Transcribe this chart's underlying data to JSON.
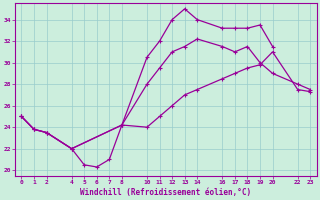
{
  "xlabel": "Windchill (Refroidissement éolien,°C)",
  "background_color": "#cceedd",
  "line_color": "#990099",
  "xlim": [
    -0.5,
    23.5
  ],
  "ylim": [
    19.5,
    35.5
  ],
  "yticks": [
    20,
    22,
    24,
    26,
    28,
    30,
    32,
    34
  ],
  "x_ticks": [
    0,
    1,
    2,
    4,
    5,
    6,
    7,
    8,
    10,
    11,
    12,
    13,
    14,
    16,
    17,
    18,
    19,
    20,
    22,
    23
  ],
  "line1_x": [
    0,
    1,
    2,
    4,
    5,
    6,
    7,
    8,
    10,
    11,
    12,
    13,
    14,
    16,
    17,
    18,
    19,
    20
  ],
  "line1_y": [
    25.0,
    23.8,
    23.5,
    22.0,
    20.5,
    20.3,
    21.0,
    24.2,
    30.5,
    32.0,
    34.0,
    35.0,
    34.0,
    33.2,
    33.2,
    33.2,
    33.5,
    31.5
  ],
  "line2_x": [
    0,
    1,
    2,
    4,
    8,
    10,
    11,
    12,
    13,
    14,
    16,
    17,
    18,
    19,
    20,
    22,
    23
  ],
  "line2_y": [
    25.0,
    23.8,
    23.5,
    22.0,
    24.2,
    28.0,
    29.5,
    31.0,
    31.5,
    32.2,
    31.5,
    31.0,
    31.5,
    30.0,
    29.0,
    28.0,
    27.5
  ],
  "line3_x": [
    0,
    1,
    2,
    4,
    8,
    10,
    11,
    12,
    13,
    14,
    16,
    17,
    18,
    19,
    20,
    22,
    23
  ],
  "line3_y": [
    25.0,
    23.8,
    23.5,
    22.0,
    24.2,
    24.0,
    25.0,
    26.0,
    27.0,
    27.5,
    28.5,
    29.0,
    29.5,
    29.8,
    31.0,
    27.5,
    27.3
  ]
}
